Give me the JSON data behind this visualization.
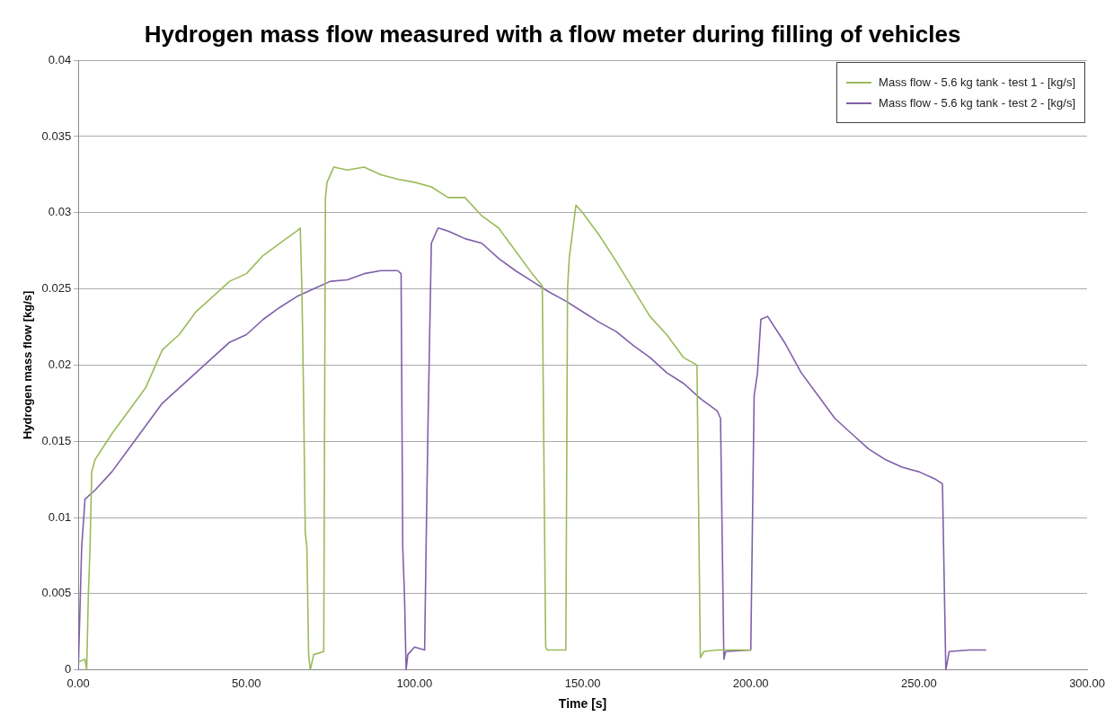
{
  "chart_data": {
    "type": "line",
    "title": "Hydrogen mass flow measured with a flow meter during filling of vehicles",
    "xlabel": "Time [s]",
    "ylabel": "Hydrogen mass flow [kg/s]",
    "xlim": [
      0,
      300
    ],
    "xticks": [
      {
        "value": 0,
        "label": "0.00"
      },
      {
        "value": 50,
        "label": "50.00"
      },
      {
        "value": 100,
        "label": "100.00"
      },
      {
        "value": 150,
        "label": "150.00"
      },
      {
        "value": 200,
        "label": "200.00"
      },
      {
        "value": 250,
        "label": "250.00"
      },
      {
        "value": 300,
        "label": "300.00"
      }
    ],
    "ylim": [
      0,
      0.04
    ],
    "yticks": [
      0,
      0.005,
      0.01,
      0.015,
      0.02,
      0.025,
      0.03,
      0.035,
      0.04
    ],
    "grid": "y",
    "legend": "top right",
    "marker": "none",
    "line_style": "solid",
    "series": [
      {
        "name": "Mass flow - 5.6 kg tank - test 1 - [kg/s]",
        "color": "#9bbb59",
        "x": [
          0,
          2,
          2.5,
          3,
          3.5,
          4,
          5,
          10,
          15,
          20,
          25,
          30,
          35,
          40,
          45,
          50,
          55,
          60,
          65,
          66,
          66.5,
          67,
          67.5,
          68,
          68.5,
          69,
          70,
          73,
          73.5,
          74,
          76,
          80,
          85,
          90,
          95,
          100,
          105,
          110,
          115,
          120,
          125,
          130,
          135,
          138,
          139,
          139.5,
          145,
          145.5,
          146,
          148,
          150,
          155,
          160,
          165,
          170,
          175,
          180,
          184,
          185,
          186,
          190,
          200
        ],
        "values": [
          0.0005,
          0.0007,
          0,
          0.005,
          0.008,
          0.013,
          0.0138,
          0.0155,
          0.017,
          0.0185,
          0.021,
          0.022,
          0.0235,
          0.0245,
          0.0255,
          0.026,
          0.0272,
          0.028,
          0.0288,
          0.029,
          0.025,
          0.018,
          0.009,
          0.008,
          0.001,
          0,
          0.001,
          0.0012,
          0.031,
          0.032,
          0.033,
          0.0328,
          0.033,
          0.0325,
          0.0322,
          0.032,
          0.0317,
          0.031,
          0.031,
          0.0298,
          0.029,
          0.0275,
          0.026,
          0.0252,
          0.0015,
          0.0013,
          0.0013,
          0.025,
          0.027,
          0.0305,
          0.03,
          0.0285,
          0.0268,
          0.025,
          0.0232,
          0.022,
          0.0205,
          0.02,
          0.0008,
          0.0012,
          0.0013,
          0.0013
        ]
      },
      {
        "name": "Mass flow - 5.6 kg tank - test 2 - [kg/s]",
        "color": "#7f60a8",
        "x": [
          0,
          1,
          2,
          5,
          10,
          15,
          20,
          25,
          30,
          35,
          40,
          45,
          50,
          55,
          60,
          65,
          70,
          75,
          80,
          85,
          90,
          95,
          96,
          96.5,
          97,
          97.5,
          98,
          100,
          103,
          103.5,
          104,
          105,
          107,
          110,
          115,
          120,
          125,
          130,
          135,
          140,
          145,
          150,
          155,
          160,
          165,
          170,
          175,
          180,
          185,
          190,
          191,
          192,
          192.5,
          200,
          201,
          202,
          203,
          205,
          210,
          215,
          220,
          225,
          230,
          235,
          240,
          245,
          250,
          255,
          257,
          258,
          259,
          265,
          270
        ],
        "values": [
          0,
          0.008,
          0.0112,
          0.0118,
          0.013,
          0.0145,
          0.016,
          0.0175,
          0.0185,
          0.0195,
          0.0205,
          0.0215,
          0.022,
          0.023,
          0.0238,
          0.0245,
          0.025,
          0.0255,
          0.0256,
          0.026,
          0.0262,
          0.0262,
          0.026,
          0.008,
          0.005,
          0,
          0.001,
          0.0015,
          0.0013,
          0.009,
          0.016,
          0.028,
          0.029,
          0.0288,
          0.0283,
          0.028,
          0.027,
          0.0262,
          0.0255,
          0.0248,
          0.0242,
          0.0235,
          0.0228,
          0.0222,
          0.0213,
          0.0205,
          0.0195,
          0.0188,
          0.0178,
          0.017,
          0.0165,
          0.0007,
          0.0012,
          0.0013,
          0.018,
          0.0195,
          0.023,
          0.0232,
          0.0215,
          0.0195,
          0.018,
          0.0165,
          0.0155,
          0.0145,
          0.0138,
          0.0133,
          0.013,
          0.0125,
          0.0122,
          0,
          0.0012,
          0.0013,
          0.0013
        ]
      }
    ]
  }
}
